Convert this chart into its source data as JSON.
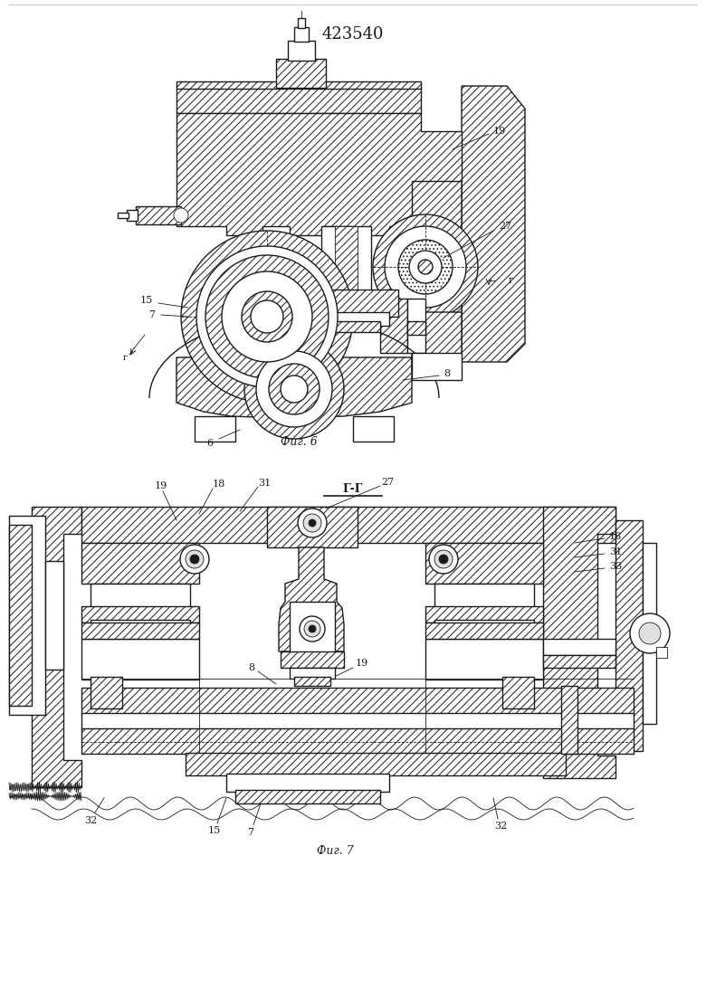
{
  "title": "423540",
  "bg": "#ffffff",
  "lc": "#1a1a1a",
  "fig_width": 7.8,
  "fig_height": 11.03,
  "fig_dpi": 100,
  "fig6_caption": "Фиг. 6",
  "fig7_caption": "Фиг. 7",
  "section_label": "Г-Г"
}
